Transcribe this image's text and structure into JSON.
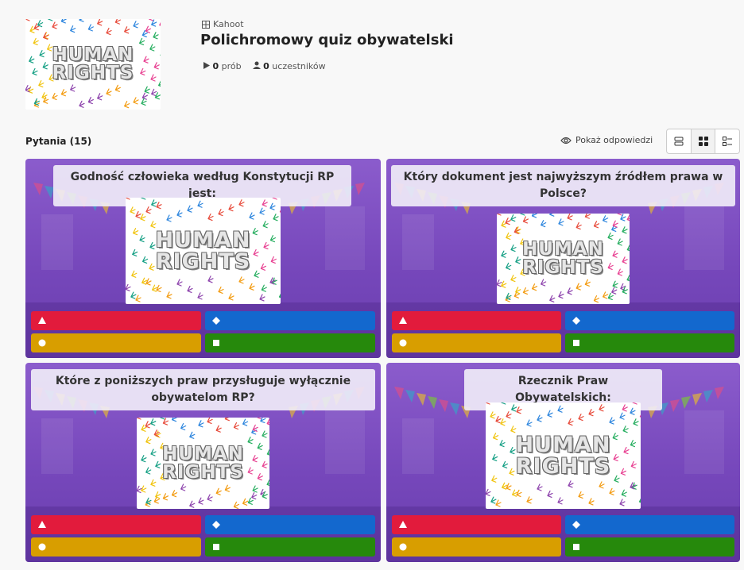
{
  "header": {
    "kind": "Kahoot",
    "title": "Polichromowy quiz obywatelski",
    "plays": "0",
    "plays_label": "prób",
    "players": "0",
    "players_label": "uczestników"
  },
  "image_text": {
    "line1": "HUMAN",
    "line2": "RIGHTS"
  },
  "questions_heading": "Pytania (15)",
  "show_answers": "Pokaż odpowiedzi",
  "questions": [
    {
      "text": "Godność człowieka według Konstytucji RP jest:"
    },
    {
      "text": "Który dokument jest najwyższym źródłem prawa w Polsce?"
    },
    {
      "text": "Które z poniższych praw przysługuje wyłącznie obywatelom RP?"
    },
    {
      "text": "Rzecznik Praw Obywatelskich:"
    }
  ]
}
